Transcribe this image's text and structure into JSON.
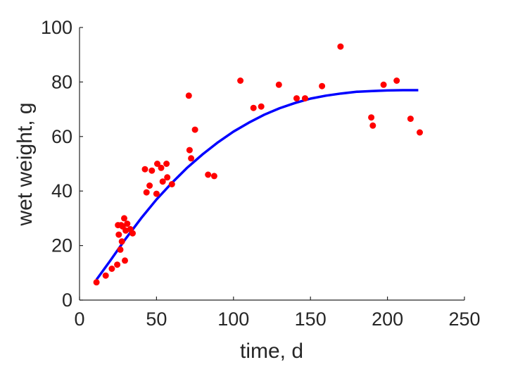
{
  "chart_data": {
    "type": "scatter",
    "xlabel": "time, d",
    "ylabel": "wet weight, g",
    "xlim": [
      0,
      250
    ],
    "ylim": [
      0,
      100
    ],
    "xticks": [
      0,
      50,
      100,
      150,
      200,
      250
    ],
    "yticks": [
      0,
      20,
      40,
      60,
      80,
      100
    ],
    "grid": false,
    "series": [
      {
        "kind": "points",
        "color": "#ff0000",
        "points": [
          [
            11,
            6.5
          ],
          [
            17,
            9
          ],
          [
            21,
            11.5
          ],
          [
            24.5,
            13
          ],
          [
            25,
            27.5
          ],
          [
            25.5,
            24
          ],
          [
            26.5,
            18.5
          ],
          [
            27,
            27.5
          ],
          [
            27.5,
            21.5
          ],
          [
            28,
            27
          ],
          [
            29,
            30
          ],
          [
            29.5,
            14.5
          ],
          [
            30,
            25.5
          ],
          [
            31,
            28
          ],
          [
            33,
            26
          ],
          [
            34.5,
            24.5
          ],
          [
            42.5,
            48
          ],
          [
            43.5,
            39.5
          ],
          [
            45.5,
            42
          ],
          [
            47,
            47.5
          ],
          [
            50,
            39
          ],
          [
            50.5,
            50
          ],
          [
            53,
            48.5
          ],
          [
            54,
            43.5
          ],
          [
            56.5,
            50
          ],
          [
            57,
            45
          ],
          [
            60,
            42.5
          ],
          [
            71,
            75
          ],
          [
            71.5,
            55
          ],
          [
            72.5,
            52
          ],
          [
            75,
            62.5
          ],
          [
            83.5,
            46
          ],
          [
            87.5,
            45.5
          ],
          [
            104.5,
            80.5
          ],
          [
            113,
            70.5
          ],
          [
            118,
            71
          ],
          [
            129.5,
            79
          ],
          [
            141,
            74
          ],
          [
            146.5,
            74
          ],
          [
            157.5,
            78.5
          ],
          [
            169.5,
            93
          ],
          [
            189.5,
            67
          ],
          [
            190.5,
            64
          ],
          [
            197.5,
            79
          ],
          [
            206,
            80.5
          ],
          [
            215,
            66.5
          ],
          [
            221,
            61.5
          ]
        ]
      },
      {
        "kind": "line",
        "color": "#0000ff",
        "points": [
          [
            11,
            7.5
          ],
          [
            20,
            14.5
          ],
          [
            30,
            22.5
          ],
          [
            40,
            30.0
          ],
          [
            50,
            36.9
          ],
          [
            60,
            43.0
          ],
          [
            70,
            48.6
          ],
          [
            80,
            53.5
          ],
          [
            90,
            57.9
          ],
          [
            100,
            61.8
          ],
          [
            110,
            65.1
          ],
          [
            120,
            68.0
          ],
          [
            130,
            70.4
          ],
          [
            140,
            72.3
          ],
          [
            150,
            73.9
          ],
          [
            160,
            75.0
          ],
          [
            170,
            75.8
          ],
          [
            180,
            76.4
          ],
          [
            190,
            76.7
          ],
          [
            200,
            76.9
          ],
          [
            210,
            77.0
          ],
          [
            220,
            77.0
          ]
        ]
      }
    ]
  }
}
